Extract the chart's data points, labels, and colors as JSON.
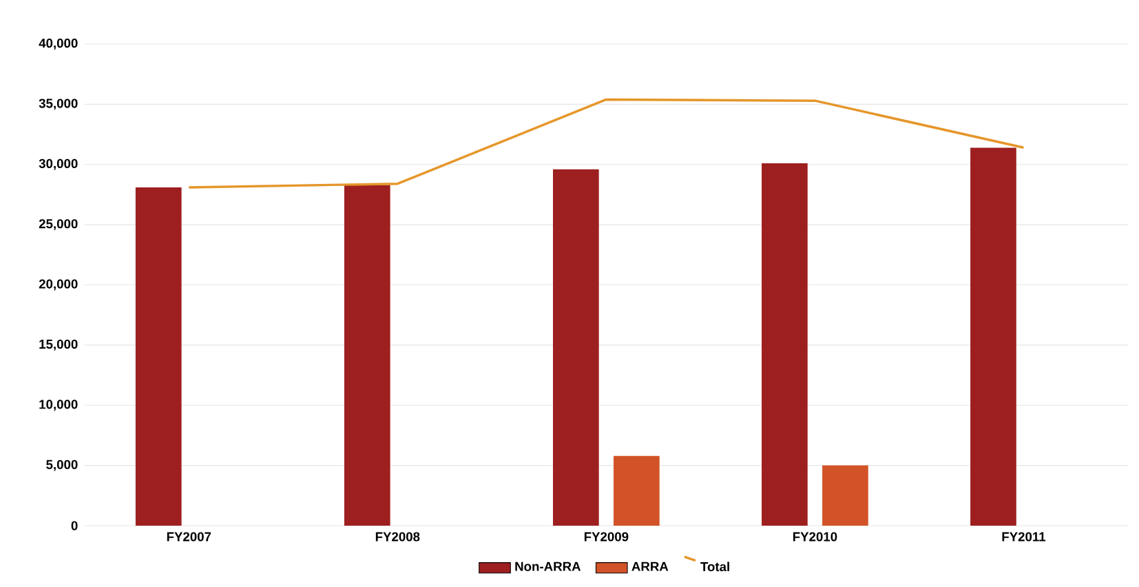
{
  "chart_data": {
    "type": "bar",
    "categories": [
      "FY2007",
      "FY2008",
      "FY2009",
      "FY2010",
      "FY2011"
    ],
    "series": [
      {
        "name": "Non-ARRA",
        "color": "#9e1f20",
        "values": [
          28100,
          28300,
          29600,
          30100,
          31400
        ]
      },
      {
        "name": "ARRA",
        "color": "#d25327",
        "values": [
          null,
          null,
          5800,
          5000,
          null
        ]
      },
      {
        "name": "Total",
        "type": "line",
        "color": "#e5962a",
        "values": [
          28100,
          28400,
          35400,
          35300,
          31400
        ]
      }
    ],
    "ylim": [
      0,
      40000
    ],
    "yticks": [
      {
        "value": 0,
        "label": "0"
      },
      {
        "value": 5000,
        "label": "5,000"
      },
      {
        "value": 10000,
        "label": "10,000"
      },
      {
        "value": 15000,
        "label": "15,000"
      },
      {
        "value": 20000,
        "label": "20,000"
      },
      {
        "value": 25000,
        "label": "25,000"
      },
      {
        "value": 30000,
        "label": "30,000"
      },
      {
        "value": 35000,
        "label": "35,000"
      },
      {
        "value": 40000,
        "label": "40,000"
      }
    ],
    "grid": "y",
    "legend": "bottom",
    "marker": "none",
    "line_style": "solid"
  }
}
